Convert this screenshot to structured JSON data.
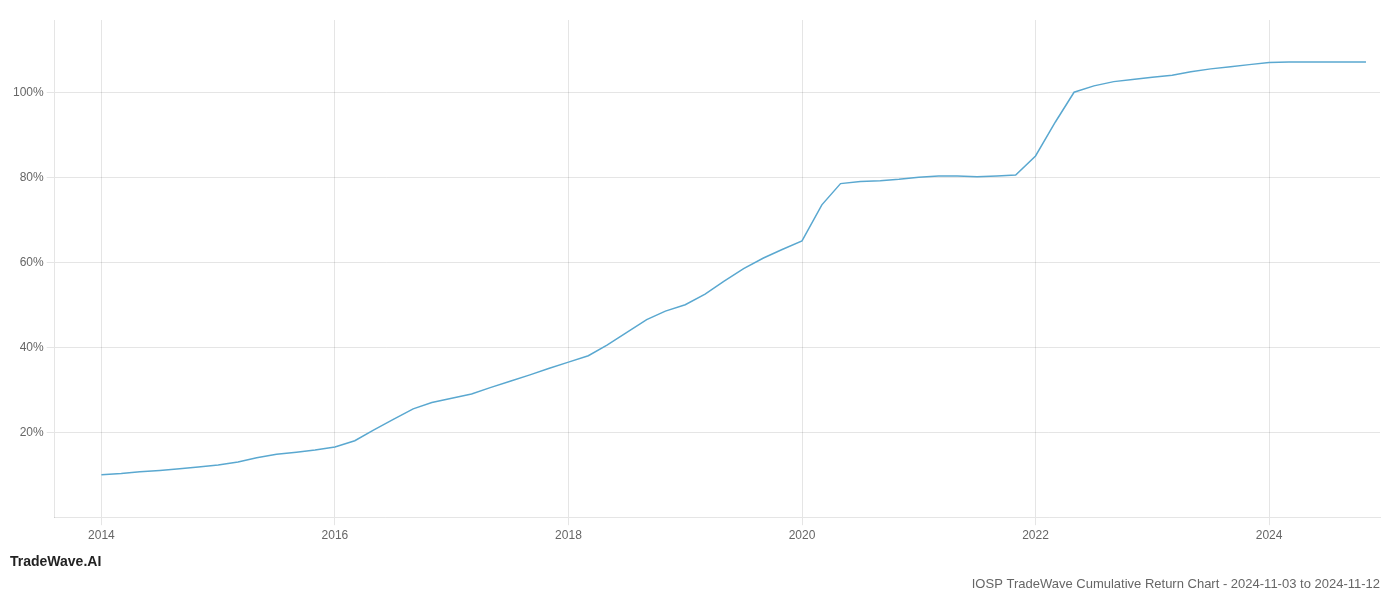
{
  "chart_data": {
    "type": "line",
    "title": "IOSP TradeWave Cumulative Return Chart - 2024-11-03 to 2024-11-12",
    "annotations": [
      "TradeWave.AI"
    ],
    "color": "#5aa8d0",
    "grid": true,
    "x": [
      2014.0,
      2014.17,
      2014.33,
      2014.5,
      2014.67,
      2014.83,
      2015.0,
      2015.17,
      2015.33,
      2015.5,
      2015.67,
      2015.83,
      2016.0,
      2016.17,
      2016.33,
      2016.5,
      2016.67,
      2016.83,
      2017.0,
      2017.17,
      2017.33,
      2017.5,
      2017.67,
      2017.83,
      2018.0,
      2018.17,
      2018.33,
      2018.5,
      2018.67,
      2018.83,
      2019.0,
      2019.17,
      2019.33,
      2019.5,
      2019.67,
      2019.83,
      2020.0,
      2020.17,
      2020.33,
      2020.5,
      2020.67,
      2020.83,
      2021.0,
      2021.17,
      2021.33,
      2021.5,
      2021.67,
      2021.83,
      2022.0,
      2022.17,
      2022.33,
      2022.5,
      2022.67,
      2022.83,
      2023.0,
      2023.17,
      2023.33,
      2023.5,
      2023.67,
      2023.83,
      2024.0,
      2024.17,
      2024.5,
      2024.83
    ],
    "values": [
      10.0,
      10.3,
      10.7,
      11.0,
      11.4,
      11.8,
      12.3,
      13.0,
      14.0,
      14.8,
      15.3,
      15.8,
      16.5,
      18.0,
      20.5,
      23.0,
      25.5,
      27.0,
      28.0,
      29.0,
      30.5,
      32.0,
      33.5,
      35.0,
      36.5,
      38.0,
      40.5,
      43.5,
      46.5,
      48.5,
      50.0,
      52.5,
      55.5,
      58.5,
      61.0,
      63.0,
      65.0,
      73.5,
      78.5,
      79.0,
      79.2,
      79.5,
      80.0,
      80.3,
      80.3,
      80.1,
      80.3,
      80.5,
      85.0,
      93.0,
      100.0,
      101.5,
      102.5,
      103.0,
      103.5,
      104.0,
      104.8,
      105.5,
      106.0,
      106.5,
      107.0,
      107.1,
      107.1,
      107.1
    ],
    "xlim": [
      2013.6,
      2024.95
    ],
    "ylim": [
      0,
      117
    ],
    "xticks": [
      2014,
      2016,
      2018,
      2020,
      2022,
      2024
    ],
    "yticks": [
      {
        "value": 20,
        "label": "20%"
      },
      {
        "value": 40,
        "label": "40%"
      },
      {
        "value": 60,
        "label": "60%"
      },
      {
        "value": 80,
        "label": "80%"
      },
      {
        "value": 100,
        "label": "100%"
      }
    ]
  }
}
